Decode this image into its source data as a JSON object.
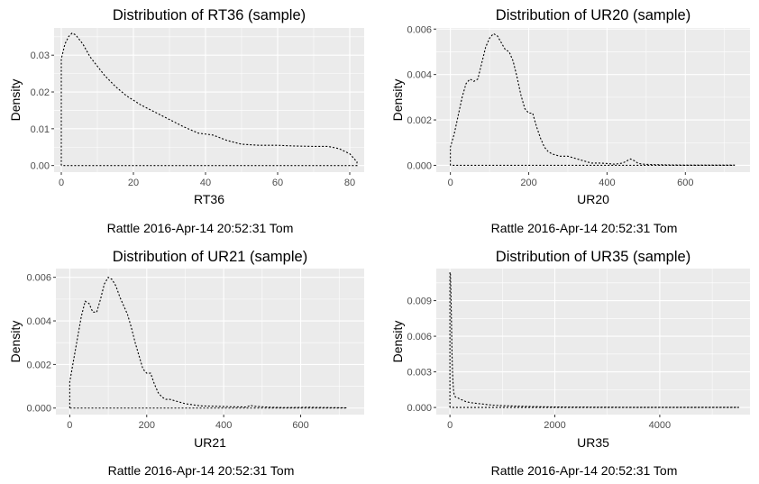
{
  "chart_data": [
    {
      "type": "line",
      "title": "Distribution of RT36 (sample)",
      "xlabel": "RT36",
      "ylabel": "Density",
      "caption": "Rattle 2016-Apr-14 20:52:31 Tom",
      "xlim": [
        -2,
        84
      ],
      "ylim": [
        -0.0018,
        0.0374
      ],
      "xticks": [
        0,
        20,
        40,
        60,
        80
      ],
      "xtick_labels": [
        "0",
        "20",
        "40",
        "60",
        "80"
      ],
      "yticks": [
        0,
        0.01,
        0.02,
        0.03
      ],
      "ytick_labels": [
        "0.00",
        "0.01",
        "0.02",
        "0.03"
      ],
      "grid": true,
      "legend": "none",
      "series": [
        {
          "values_x": [
            0,
            0,
            0.5,
            1,
            2,
            3,
            4,
            6,
            8,
            10,
            12,
            15,
            18,
            22,
            26,
            30,
            34,
            38,
            42,
            46,
            50,
            55,
            60,
            65,
            70,
            74,
            77,
            80,
            82,
            82,
            0
          ],
          "values_y": [
            0,
            0.029,
            0.031,
            0.033,
            0.035,
            0.036,
            0.0355,
            0.033,
            0.0295,
            0.027,
            0.0245,
            0.0215,
            0.019,
            0.0165,
            0.0145,
            0.0125,
            0.0105,
            0.0088,
            0.0083,
            0.0068,
            0.0058,
            0.0055,
            0.0055,
            0.0053,
            0.0052,
            0.0052,
            0.0046,
            0.0032,
            0.001,
            0,
            0
          ]
        }
      ]
    },
    {
      "type": "line",
      "title": "Distribution of UR20 (sample)",
      "xlabel": "UR20",
      "ylabel": "Density",
      "caption": "Rattle 2016-Apr-14 20:52:31 Tom",
      "xlim": [
        -36,
        765
      ],
      "ylim": [
        -0.0003,
        0.00605
      ],
      "xticks": [
        0,
        200,
        400,
        600
      ],
      "xtick_labels": [
        "0",
        "200",
        "400",
        "600"
      ],
      "yticks": [
        0,
        0.002,
        0.004,
        0.006
      ],
      "ytick_labels": [
        "0.000",
        "0.002",
        "0.004",
        "0.006"
      ],
      "grid": true,
      "legend": "none",
      "series": [
        {
          "values_x": [
            0,
            0,
            10,
            20,
            30,
            40,
            50,
            60,
            70,
            80,
            90,
            100,
            110,
            120,
            130,
            140,
            150,
            160,
            170,
            180,
            190,
            200,
            210,
            220,
            230,
            240,
            250,
            260,
            280,
            300,
            320,
            340,
            360,
            380,
            400,
            420,
            440,
            460,
            470,
            480,
            500,
            550,
            600,
            650,
            700,
            725,
            725,
            0
          ],
          "values_y": [
            0,
            0.0008,
            0.0014,
            0.0022,
            0.003,
            0.0036,
            0.0038,
            0.0037,
            0.0038,
            0.0045,
            0.0052,
            0.0056,
            0.0058,
            0.0057,
            0.0054,
            0.0051,
            0.005,
            0.0046,
            0.0039,
            0.0031,
            0.0025,
            0.0023,
            0.0023,
            0.0017,
            0.0012,
            0.0008,
            0.0006,
            0.0005,
            0.0004,
            0.0004,
            0.0003,
            0.0002,
            0.0001,
            0.0001,
            8e-05,
            5e-05,
            0.0001,
            0.00028,
            0.0002,
            8e-05,
            4e-05,
            2e-05,
            1e-05,
            1e-05,
            1e-05,
            1e-05,
            0,
            0
          ]
        }
      ]
    },
    {
      "type": "line",
      "title": "Distribution of UR21 (sample)",
      "xlabel": "UR21",
      "ylabel": "Density",
      "caption": "Rattle 2016-Apr-14 20:52:31 Tom",
      "xlim": [
        -36,
        765
      ],
      "ylim": [
        -0.0003,
        0.0064
      ],
      "xticks": [
        0,
        200,
        400,
        600
      ],
      "xtick_labels": [
        "0",
        "200",
        "400",
        "600"
      ],
      "yticks": [
        0,
        0.002,
        0.004,
        0.006
      ],
      "ytick_labels": [
        "0.000",
        "0.002",
        "0.004",
        "0.006"
      ],
      "grid": true,
      "legend": "none",
      "series": [
        {
          "values_x": [
            0,
            0,
            10,
            20,
            30,
            40,
            50,
            60,
            70,
            80,
            90,
            100,
            110,
            120,
            130,
            140,
            150,
            160,
            170,
            180,
            190,
            200,
            210,
            220,
            230,
            240,
            250,
            260,
            280,
            300,
            340,
            380,
            420,
            460,
            470,
            480,
            520,
            560,
            600,
            620,
            640,
            680,
            720,
            720,
            0
          ],
          "values_y": [
            0,
            0.0012,
            0.0022,
            0.0032,
            0.0042,
            0.0049,
            0.0048,
            0.0044,
            0.0044,
            0.005,
            0.0057,
            0.006,
            0.0059,
            0.0056,
            0.0051,
            0.0047,
            0.0043,
            0.0037,
            0.003,
            0.0024,
            0.0018,
            0.0016,
            0.0016,
            0.0011,
            0.0007,
            0.0005,
            0.0004,
            0.0004,
            0.0003,
            0.0002,
            0.0001,
            8e-05,
            6e-05,
            5e-05,
            0.00012,
            8e-05,
            4e-05,
            2e-05,
            3e-05,
            4e-05,
            3e-05,
            2e-05,
            1e-05,
            0,
            0
          ]
        }
      ]
    },
    {
      "type": "line",
      "title": "Distribution of UR35 (sample)",
      "xlabel": "UR35",
      "ylabel": "Density",
      "caption": "Rattle 2016-Apr-14 20:52:31 Tom",
      "xlim": [
        -260,
        5720
      ],
      "ylim": [
        -0.0006,
        0.0117
      ],
      "xticks": [
        0,
        2000,
        4000
      ],
      "xtick_labels": [
        "0",
        "2000",
        "4000"
      ],
      "yticks": [
        0,
        0.003,
        0.006,
        0.009
      ],
      "ytick_labels": [
        "0.000",
        "0.003",
        "0.006",
        "0.009"
      ],
      "grid": true,
      "legend": "none",
      "series": [
        {
          "values_x": [
            0,
            0,
            10,
            20,
            30,
            40,
            50,
            60,
            70,
            80,
            100,
            150,
            200,
            300,
            400,
            600,
            800,
            1000,
            1500,
            2000,
            3000,
            4000,
            5000,
            5500,
            5500,
            0
          ],
          "values_y": [
            0,
            0.0114,
            0.0112,
            0.0095,
            0.007,
            0.0045,
            0.003,
            0.002,
            0.0014,
            0.0011,
            0.0009,
            0.0008,
            0.0007,
            0.0005,
            0.0004,
            0.0003,
            0.0002,
            0.00015,
            8e-05,
            4e-05,
            2e-05,
            1e-05,
            1e-05,
            1e-05,
            0,
            0
          ]
        }
      ]
    }
  ]
}
